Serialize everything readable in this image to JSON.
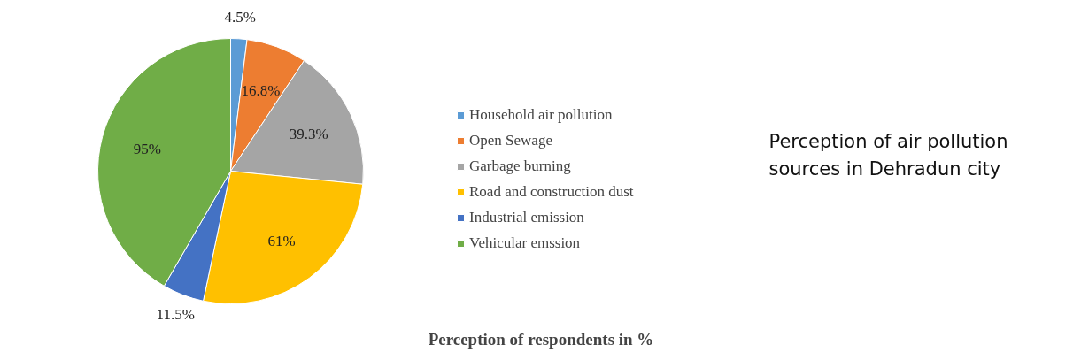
{
  "chart_data": {
    "type": "pie",
    "title": "Perception of respondents in %",
    "categories": [
      "Household air pollution",
      "Open Sewage",
      "Garbage burning",
      "Road and construction dust",
      "Industrial emission",
      "Vehicular emssion"
    ],
    "values": [
      4.5,
      16.8,
      39.3,
      61,
      11.5,
      95
    ],
    "colors": [
      "#5b9bd5",
      "#ed7d31",
      "#a5a5a5",
      "#ffc000",
      "#4472c4",
      "#70ad47"
    ],
    "value_labels": [
      "4.5%",
      "16.8%",
      "39.3%",
      "61%",
      "11.5%",
      "95%"
    ],
    "legend": "right",
    "annotations": [
      "Perception of air pollution sources in Dehradun city"
    ]
  }
}
